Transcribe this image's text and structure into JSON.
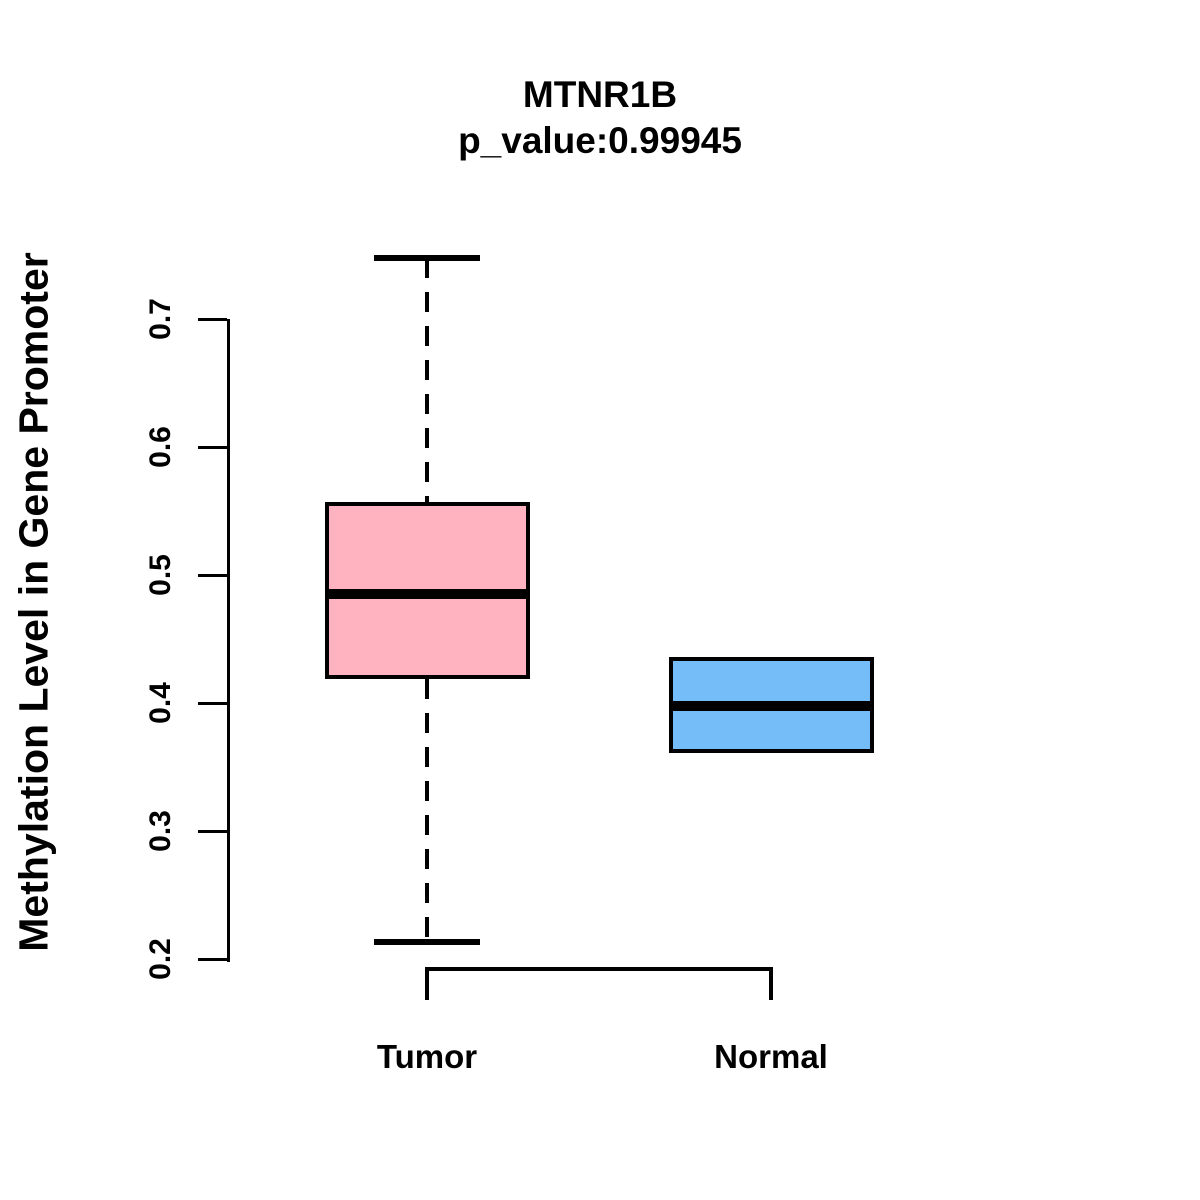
{
  "header": {
    "title": "MTNR1B",
    "subtitle": "p_value:0.99945"
  },
  "chart_data": {
    "type": "boxplot",
    "title": "MTNR1B",
    "subtitle": "p_value:0.99945",
    "xlabel": "",
    "ylabel": "Methylation Level in Gene Promoter",
    "ylim": [
      0.2,
      0.7
    ],
    "yticks": [
      0.2,
      0.3,
      0.4,
      0.5,
      0.6,
      0.7
    ],
    "grid": false,
    "legend_position": "none",
    "axis_color": "#000000",
    "whisker_style": "dashed",
    "groups": [
      {
        "label": "Tumor",
        "color": "#FFB3C1",
        "whisker_low": 0.213,
        "q1": 0.419,
        "median": 0.485,
        "q3": 0.557,
        "whisker_high": 0.748,
        "whiskers_visible": true
      },
      {
        "label": "Normal",
        "color": "#74BDF8",
        "whisker_low": 0.361,
        "q1": 0.361,
        "median": 0.398,
        "q3": 0.436,
        "whisker_high": 0.436,
        "whiskers_visible": false
      }
    ]
  }
}
